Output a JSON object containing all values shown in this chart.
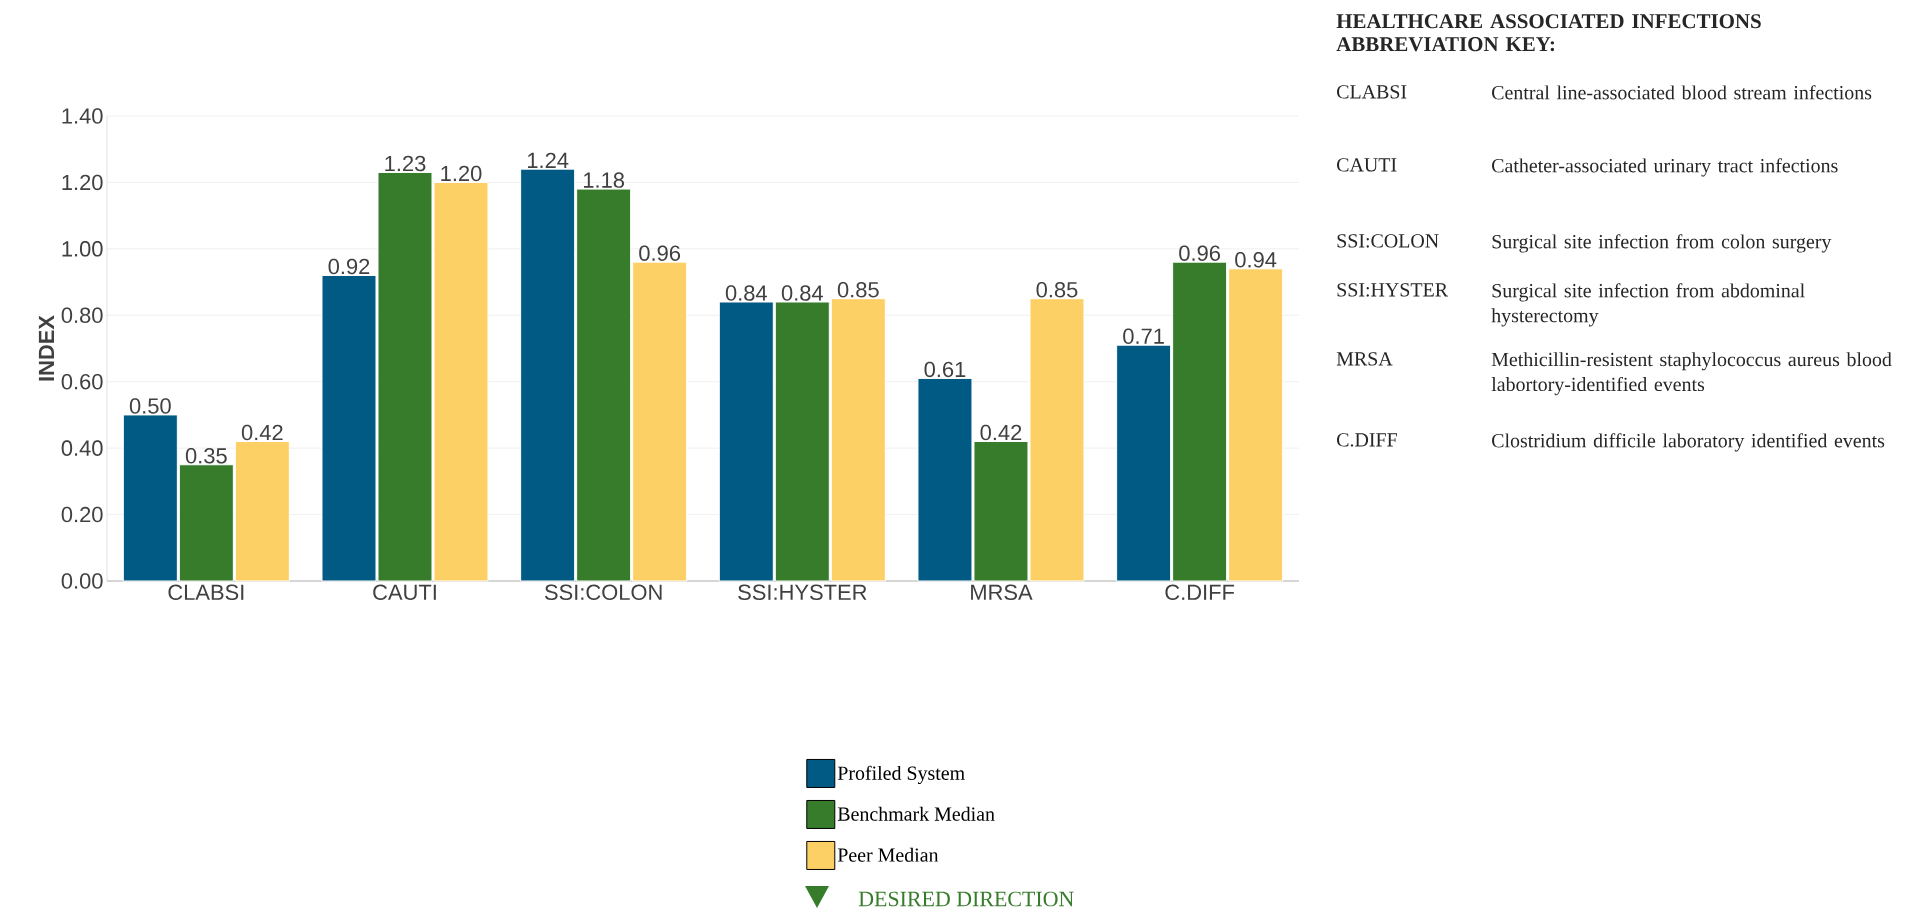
{
  "chart_data": {
    "type": "bar",
    "ylabel": "INDEX",
    "categories": [
      "CLABSI",
      "CAUTI",
      "SSI:COLON",
      "SSI:HYSTER",
      "MRSA",
      "C.DIFF"
    ],
    "series": [
      {
        "name": "Profiled System",
        "color": "#005a84",
        "values": [
          0.5,
          0.92,
          1.24,
          0.84,
          0.61,
          0.71
        ],
        "value_labels": [
          "0.50",
          "0.92",
          "1.24",
          "0.84",
          "0.61",
          "0.71"
        ]
      },
      {
        "name": "Benchmark Median",
        "color": "#367c2b",
        "values": [
          0.35,
          1.23,
          1.18,
          0.84,
          0.42,
          0.96
        ],
        "value_labels": [
          "0.35",
          "1.23",
          "1.18",
          "0.84",
          "0.42",
          "0.96"
        ]
      },
      {
        "name": "Peer Median",
        "color": "#fdd066",
        "values": [
          0.42,
          1.2,
          0.96,
          0.85,
          0.85,
          0.94
        ],
        "value_labels": [
          "0.42",
          "1.20",
          "0.96",
          "0.85",
          "0.85",
          "0.94"
        ]
      }
    ],
    "ylim": [
      0,
      1.4
    ],
    "yticks": [
      {
        "value": 0,
        "label": "0.00"
      },
      {
        "value": 0.2,
        "label": "0.20"
      },
      {
        "value": 0.4,
        "label": "0.40"
      },
      {
        "value": 0.6,
        "label": "0.60"
      },
      {
        "value": 0.8,
        "label": "0.80"
      },
      {
        "value": 1.0,
        "label": "1.00"
      },
      {
        "value": 1.2,
        "label": "1.20"
      },
      {
        "value": 1.4,
        "label": "1.40"
      }
    ],
    "grid": "y",
    "legend": "bottom",
    "annotations": [
      "HEALTHCARE ASSOCIATED INFECTIONS ABBREVIATION KEY:",
      "CLABSI",
      "Central line-associated blood stream infections",
      "CAUTI",
      "Catheter-associated urinary tract infections",
      "SSI:COLON",
      "Surgical site infection from colon surgery",
      "SSI:HYSTER",
      "Surgical site infection from abdominal hysterectomy",
      "MRSA",
      "Methicillin-resistent staphylococcus aureus blood labortory-identified events",
      "C.DIFF",
      "Clostridium difficile laboratory identified events",
      "DESIRED DIRECTION"
    ]
  }
}
